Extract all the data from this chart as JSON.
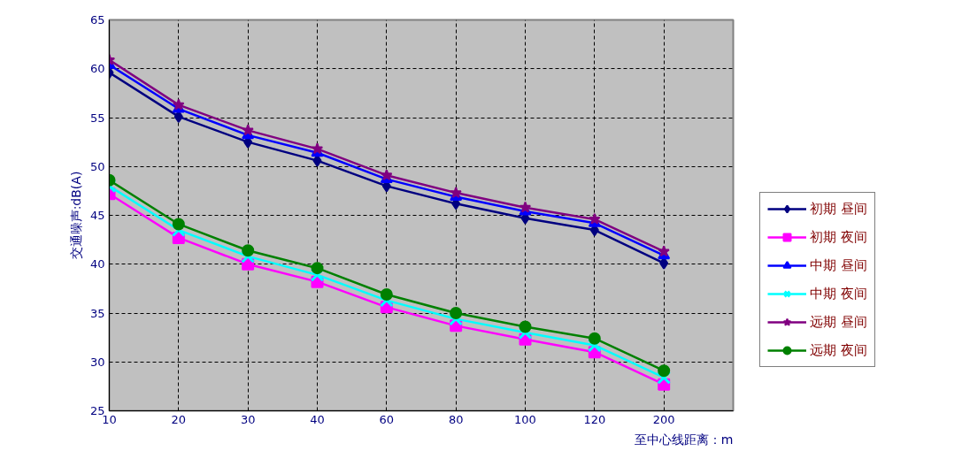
{
  "chart_data": {
    "type": "line",
    "xlabel": "至中心线距离：m",
    "ylabel": "交通噪声:dB(A)",
    "categories": [
      "10",
      "20",
      "30",
      "40",
      "60",
      "80",
      "100",
      "120",
      "200"
    ],
    "ylim": [
      25,
      65
    ],
    "yticks": [
      25,
      30,
      35,
      40,
      45,
      50,
      55,
      60,
      65
    ],
    "grid": true,
    "legend": "right",
    "series": [
      {
        "name": "初期 昼间",
        "color": "#000080",
        "marker": "diamond",
        "values": [
          59.6,
          55.1,
          52.5,
          50.6,
          48.0,
          46.2,
          44.7,
          43.5,
          40.1
        ]
      },
      {
        "name": "初期 夜间",
        "color": "#ff00ff",
        "marker": "square",
        "values": [
          47.2,
          42.7,
          40.0,
          38.2,
          35.6,
          33.7,
          32.3,
          31.0,
          27.7
        ]
      },
      {
        "name": "中期 昼间",
        "color": "#0000ff",
        "marker": "triangle",
        "values": [
          60.4,
          55.9,
          53.2,
          51.4,
          48.7,
          46.9,
          45.4,
          44.2,
          40.9
        ]
      },
      {
        "name": "中期 夜间",
        "color": "#00ffff",
        "marker": "cross",
        "values": [
          48.0,
          43.5,
          40.8,
          38.9,
          36.3,
          34.4,
          33.0,
          31.7,
          28.4
        ]
      },
      {
        "name": "远期 昼间",
        "color": "#800080",
        "marker": "star",
        "values": [
          60.9,
          56.3,
          53.7,
          51.8,
          49.1,
          47.3,
          45.8,
          44.6,
          41.3
        ]
      },
      {
        "name": "远期 夜间",
        "color": "#008000",
        "marker": "circle",
        "values": [
          48.6,
          44.1,
          41.4,
          39.6,
          36.9,
          35.0,
          33.6,
          32.4,
          29.1
        ]
      }
    ]
  }
}
